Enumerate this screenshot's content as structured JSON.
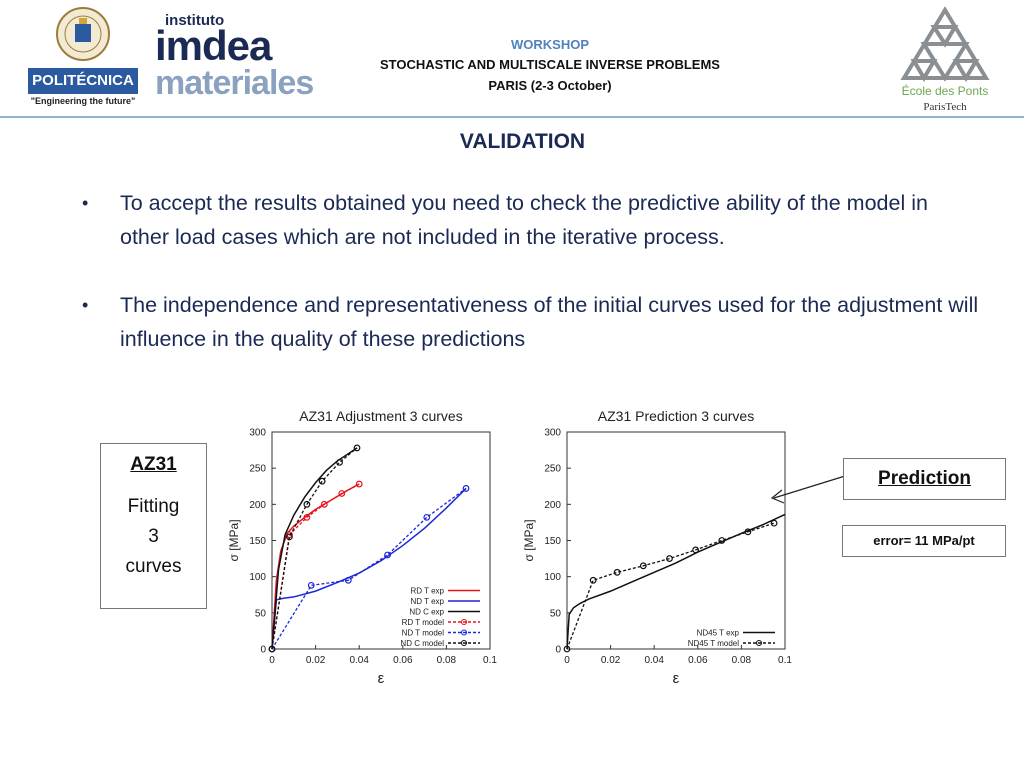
{
  "header": {
    "upm_logo": {
      "name": "POLITÉCNICA",
      "tagline": "\"Engineering the future\""
    },
    "imdea_logo": {
      "line1": "instituto",
      "line2": "imdea",
      "line3": "materiales"
    },
    "workshop_label": "WORKSHOP",
    "workshop_title": "STOCHASTIC AND MULTISCALE INVERSE PROBLEMS",
    "workshop_date": "PARIS (2-3 October)",
    "ponts_logo": {
      "name": "École des Ponts",
      "sub": "ParisTech"
    }
  },
  "slide_title": "VALIDATION",
  "bullets": [
    "To accept the results obtained you need to check the predictive ability of the model in other load cases which are not included in the iterative process.",
    "The independence and representativeness of the initial curves used for the adjustment will influence in the quality of these predictions"
  ],
  "bullet_symbol": "•",
  "left_box": {
    "title": "AZ31",
    "text_lines": [
      "Fitting",
      "3",
      "curves"
    ]
  },
  "prediction_box": {
    "label": "Prediction"
  },
  "error_box": {
    "text": "error= 11 MPa/pt"
  },
  "chart_data": [
    {
      "type": "line",
      "title": "AZ31 Adjustment 3 curves",
      "xlabel": "ε",
      "ylabel": "σ [MPa]",
      "xlim": [
        0,
        0.1
      ],
      "ylim": [
        0,
        300
      ],
      "xticks": [
        0,
        0.02,
        0.04,
        0.06,
        0.08,
        0.1
      ],
      "xtick_labels": [
        "0",
        "0.02",
        "0.04",
        "0.06",
        "0.08",
        "0.1"
      ],
      "yticks": [
        0,
        50,
        100,
        150,
        200,
        250,
        300
      ],
      "ytick_labels": [
        "0",
        "50",
        "100",
        "150",
        "200",
        "250",
        "300"
      ],
      "grid": false,
      "legend_position": "bottom-right",
      "series": [
        {
          "name": "RD T exp",
          "color": "#e8121b",
          "dash": false,
          "marker": false,
          "x": [
            0,
            0.002,
            0.004,
            0.007,
            0.01,
            0.015,
            0.02,
            0.025,
            0.03,
            0.035,
            0.04
          ],
          "y": [
            0,
            95,
            135,
            160,
            170,
            182,
            193,
            202,
            211,
            220,
            228
          ]
        },
        {
          "name": "ND T exp",
          "color": "#1c27d8",
          "dash": false,
          "marker": false,
          "x": [
            0,
            0.002,
            0.005,
            0.01,
            0.02,
            0.03,
            0.04,
            0.05,
            0.06,
            0.07,
            0.08,
            0.089
          ],
          "y": [
            0,
            68,
            70,
            72,
            80,
            92,
            105,
            122,
            143,
            167,
            195,
            222
          ]
        },
        {
          "name": "ND C exp",
          "color": "#111111",
          "dash": false,
          "marker": false,
          "x": [
            0,
            0.003,
            0.006,
            0.01,
            0.015,
            0.02,
            0.025,
            0.03,
            0.035,
            0.039
          ],
          "y": [
            0,
            110,
            158,
            185,
            210,
            230,
            247,
            260,
            270,
            278
          ]
        },
        {
          "name": "RD T model",
          "color": "#e8121b",
          "dash": true,
          "marker": true,
          "x": [
            0,
            0.008,
            0.016,
            0.024,
            0.032,
            0.04
          ],
          "y": [
            0,
            158,
            182,
            200,
            215,
            228
          ]
        },
        {
          "name": "ND T model",
          "color": "#1c27d8",
          "dash": true,
          "marker": true,
          "x": [
            0,
            0.018,
            0.035,
            0.053,
            0.071,
            0.089
          ],
          "y": [
            0,
            88,
            95,
            130,
            182,
            222
          ]
        },
        {
          "name": "ND C model",
          "color": "#111111",
          "dash": true,
          "marker": true,
          "x": [
            0,
            0.008,
            0.016,
            0.023,
            0.031,
            0.039
          ],
          "y": [
            0,
            155,
            200,
            232,
            258,
            278
          ]
        }
      ]
    },
    {
      "type": "line",
      "title": "AZ31 Prediction 3 curves",
      "xlabel": "ε",
      "ylabel": "σ [MPa]",
      "xlim": [
        0,
        0.1
      ],
      "ylim": [
        0,
        300
      ],
      "xticks": [
        0,
        0.02,
        0.04,
        0.06,
        0.08,
        0.1
      ],
      "xtick_labels": [
        "0",
        "0.02",
        "0.04",
        "0.06",
        "0.08",
        "0.1"
      ],
      "yticks": [
        0,
        50,
        100,
        150,
        200,
        250,
        300
      ],
      "ytick_labels": [
        "0",
        "50",
        "100",
        "150",
        "200",
        "250",
        "300"
      ],
      "grid": false,
      "legend_position": "bottom-right",
      "series": [
        {
          "name": "ND45 T exp",
          "color": "#111111",
          "dash": false,
          "marker": false,
          "x": [
            0,
            0.001,
            0.003,
            0.006,
            0.01,
            0.02,
            0.03,
            0.04,
            0.05,
            0.06,
            0.07,
            0.08,
            0.09,
            0.1
          ],
          "y": [
            0,
            48,
            57,
            63,
            69,
            80,
            93,
            106,
            119,
            134,
            147,
            160,
            172,
            186
          ]
        },
        {
          "name": "ND45 T model",
          "color": "#111111",
          "dash": true,
          "marker": true,
          "x": [
            0,
            0.012,
            0.023,
            0.035,
            0.047,
            0.059,
            0.071,
            0.083,
            0.095
          ],
          "y": [
            0,
            95,
            106,
            115,
            125,
            137,
            150,
            162,
            174
          ]
        }
      ]
    }
  ]
}
